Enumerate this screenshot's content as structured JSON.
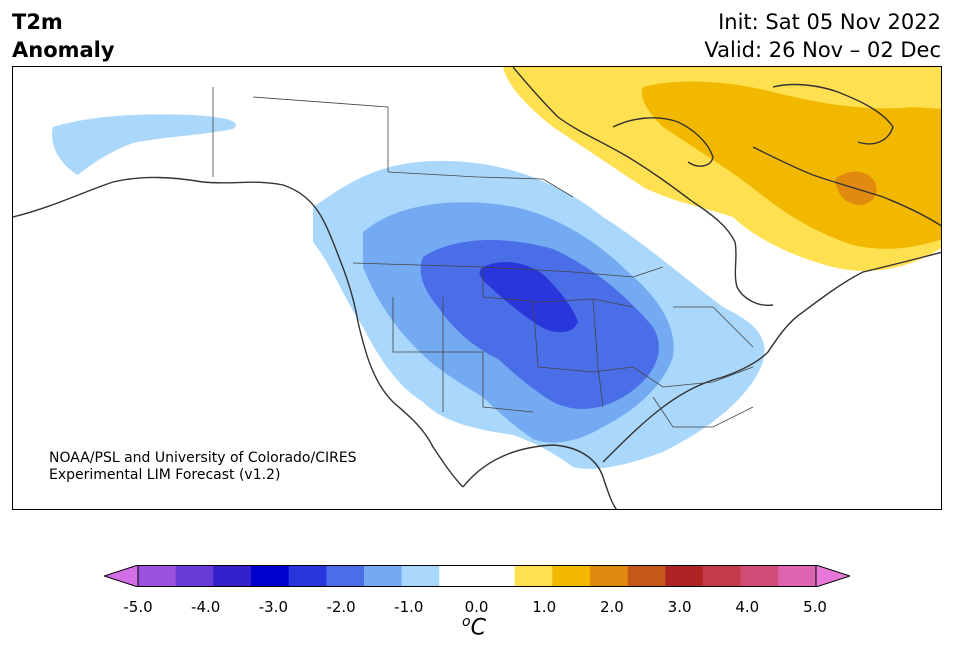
{
  "header": {
    "variable": "T2m",
    "quantity": "Anomaly",
    "init": "Init: Sat 05 Nov 2022",
    "valid": "Valid: 26 Nov – 02 Dec"
  },
  "credit": {
    "line1": "NOAA/PSL and University of Colorado/CIRES",
    "line2": "Experimental LIM Forecast (v1.2)"
  },
  "colorbar": {
    "ticks": [
      "-5.0",
      "-4.0",
      "-3.0",
      "-2.0",
      "-1.0",
      "0.0",
      "1.0",
      "2.0",
      "3.0",
      "4.0",
      "5.0"
    ],
    "unit_sup": "o",
    "unit": "C",
    "colors": [
      "#d46ee8",
      "#9a52dc",
      "#6a3ad8",
      "#3420cc",
      "#0000cc",
      "#2836dc",
      "#4a6ee8",
      "#73aaf2",
      "#aad8fc",
      "#ffffff",
      "#ffffff",
      "#ffe050",
      "#f2b800",
      "#e08a10",
      "#c85818",
      "#ae2424",
      "#c43a4a",
      "#d04c78",
      "#dc64b0",
      "#e878d8"
    ]
  },
  "map": {
    "region": "North America",
    "anomaly_colors": {
      "cold_1": "#aad8fc",
      "cold_2": "#73aaf2",
      "cold_3": "#4a6ee8",
      "cold_4": "#2836dc",
      "warm_1": "#ffe050",
      "warm_2": "#f2b800",
      "warm_3": "#e08a10"
    }
  }
}
